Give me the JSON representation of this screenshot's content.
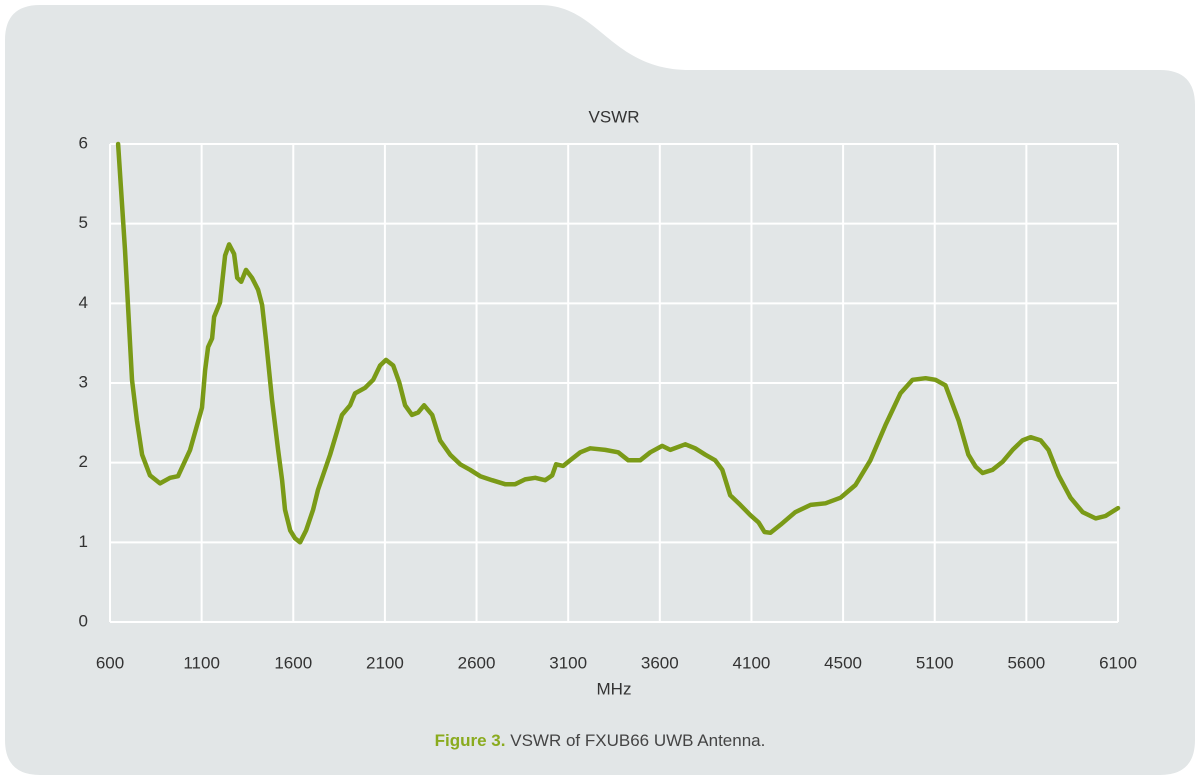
{
  "chart_data": {
    "type": "line",
    "title": "VSWR",
    "xlabel": "MHz",
    "caption": {
      "label": "Figure 3.",
      "text": "VSWR of FXUB66 UWB Antenna."
    },
    "xlim": [
      600,
      6100
    ],
    "xticks": [
      600,
      1100,
      1600,
      2100,
      2600,
      3100,
      3600,
      4100,
      4500,
      5100,
      5600,
      6100
    ],
    "ylim": [
      0,
      6
    ],
    "yticks": [
      0,
      1,
      2,
      3,
      4,
      5,
      6
    ],
    "grid": true,
    "series": [
      {
        "name": "VSWR",
        "color": "#7a9a17",
        "x": [
          644,
          682,
          720,
          747,
          775,
          818,
          873,
          928,
          971,
          1037,
          1102,
          1119,
          1135,
          1157,
          1168,
          1200,
          1228,
          1250,
          1277,
          1294,
          1316,
          1342,
          1375,
          1408,
          1430,
          1451,
          1484,
          1517,
          1539,
          1555,
          1583,
          1610,
          1637,
          1670,
          1708,
          1735,
          1801,
          1866,
          1910,
          1937,
          1992,
          2036,
          2074,
          2106,
          2145,
          2178,
          2210,
          2248,
          2281,
          2314,
          2358,
          2401,
          2456,
          2511,
          2565,
          2620,
          2685,
          2756,
          2811,
          2865,
          2920,
          2974,
          3013,
          3034,
          3073,
          3111,
          3166,
          3220,
          3302,
          3373,
          3428,
          3493,
          3548,
          3613,
          3657,
          3739,
          3793,
          3848,
          3902,
          3941,
          3984,
          4039,
          4094,
          4131,
          4157,
          4183,
          4227,
          4292,
          4358,
          4423,
          4489,
          4581,
          4679,
          4777,
          4875,
          4955,
          5040,
          5104,
          5159,
          5230,
          5284,
          5323,
          5361,
          5415,
          5470,
          5525,
          5579,
          5623,
          5678,
          5721,
          5776,
          5841,
          5907,
          5978,
          6032,
          6100
        ],
        "values": [
          6.0,
          4.67,
          3.04,
          2.53,
          2.1,
          1.84,
          1.74,
          1.81,
          1.83,
          2.16,
          2.69,
          3.16,
          3.45,
          3.56,
          3.83,
          4.01,
          4.6,
          4.74,
          4.62,
          4.32,
          4.27,
          4.42,
          4.32,
          4.17,
          3.98,
          3.54,
          2.79,
          2.16,
          1.78,
          1.41,
          1.15,
          1.05,
          1.0,
          1.15,
          1.41,
          1.66,
          2.1,
          2.6,
          2.72,
          2.87,
          2.94,
          3.04,
          3.22,
          3.29,
          3.22,
          3.01,
          2.72,
          2.6,
          2.63,
          2.72,
          2.6,
          2.28,
          2.1,
          1.98,
          1.91,
          1.83,
          1.78,
          1.73,
          1.73,
          1.79,
          1.81,
          1.78,
          1.84,
          1.98,
          1.96,
          2.03,
          2.13,
          2.18,
          2.16,
          2.13,
          2.03,
          2.03,
          2.13,
          2.21,
          2.16,
          2.23,
          2.18,
          2.1,
          2.03,
          1.91,
          1.59,
          1.47,
          1.34,
          1.25,
          1.13,
          1.12,
          1.22,
          1.38,
          1.47,
          1.49,
          1.56,
          1.72,
          2.03,
          2.47,
          2.87,
          3.04,
          3.06,
          3.04,
          2.97,
          2.53,
          2.1,
          1.95,
          1.87,
          1.91,
          2.01,
          2.16,
          2.28,
          2.32,
          2.28,
          2.16,
          1.84,
          1.56,
          1.38,
          1.3,
          1.33,
          1.43
        ]
      }
    ]
  }
}
